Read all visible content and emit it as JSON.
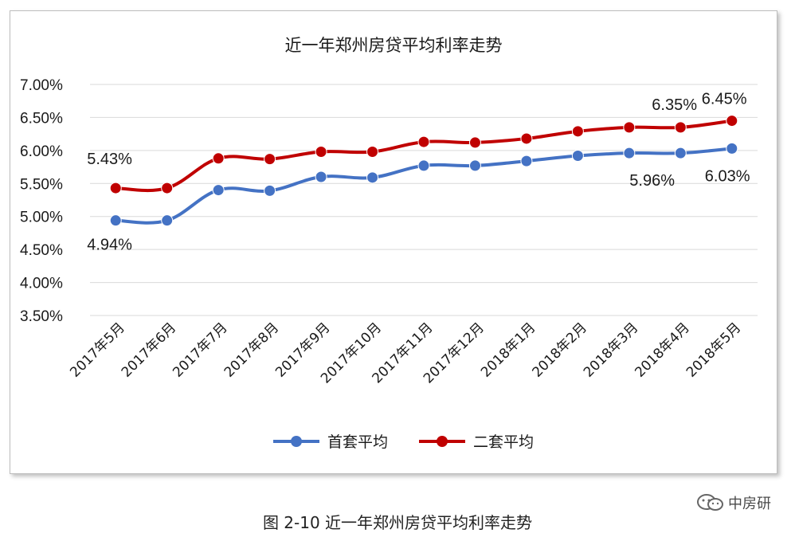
{
  "colors": {
    "first_home": "#4472C4",
    "second_home": "#C00000",
    "grid": "#d9d9d9",
    "text": "#1a1a1a"
  },
  "chart_data": {
    "type": "line",
    "title": "近一年郑州房贷平均利率走势",
    "categories": [
      "2017年5月",
      "2017年6月",
      "2017年7月",
      "2017年8月",
      "2017年9月",
      "2017年10月",
      "2017年11月",
      "2017年12月",
      "2018年1月",
      "2018年2月",
      "2018年3月",
      "2018年4月",
      "2018年5月"
    ],
    "series": [
      {
        "name": "首套平均",
        "values": [
          4.94,
          4.94,
          5.4,
          5.39,
          5.6,
          5.59,
          5.77,
          5.77,
          5.84,
          5.92,
          5.96,
          5.96,
          6.03
        ]
      },
      {
        "name": "二套平均",
        "values": [
          5.43,
          5.43,
          5.88,
          5.87,
          5.98,
          5.98,
          6.13,
          6.12,
          6.18,
          6.29,
          6.35,
          6.35,
          6.45
        ]
      }
    ],
    "y_ticks": [
      "7.00%",
      "6.50%",
      "6.00%",
      "5.50%",
      "5.00%",
      "4.50%",
      "4.00%",
      "3.50%"
    ],
    "ylim": [
      3.5,
      7.0
    ],
    "grid": true,
    "legend": "bottom",
    "data_labels": [
      {
        "series": 0,
        "index": 0,
        "text": "4.94%"
      },
      {
        "series": 1,
        "index": 0,
        "text": "5.43%"
      },
      {
        "series": 1,
        "index": 11,
        "text": "6.35%"
      },
      {
        "series": 1,
        "index": 12,
        "text": "6.45%"
      },
      {
        "series": 0,
        "index": 11,
        "text": "5.96%"
      },
      {
        "series": 0,
        "index": 12,
        "text": "6.03%"
      }
    ]
  },
  "caption": "图 2-10  近一年郑州房贷平均利率走势",
  "source_mark": "中房研"
}
